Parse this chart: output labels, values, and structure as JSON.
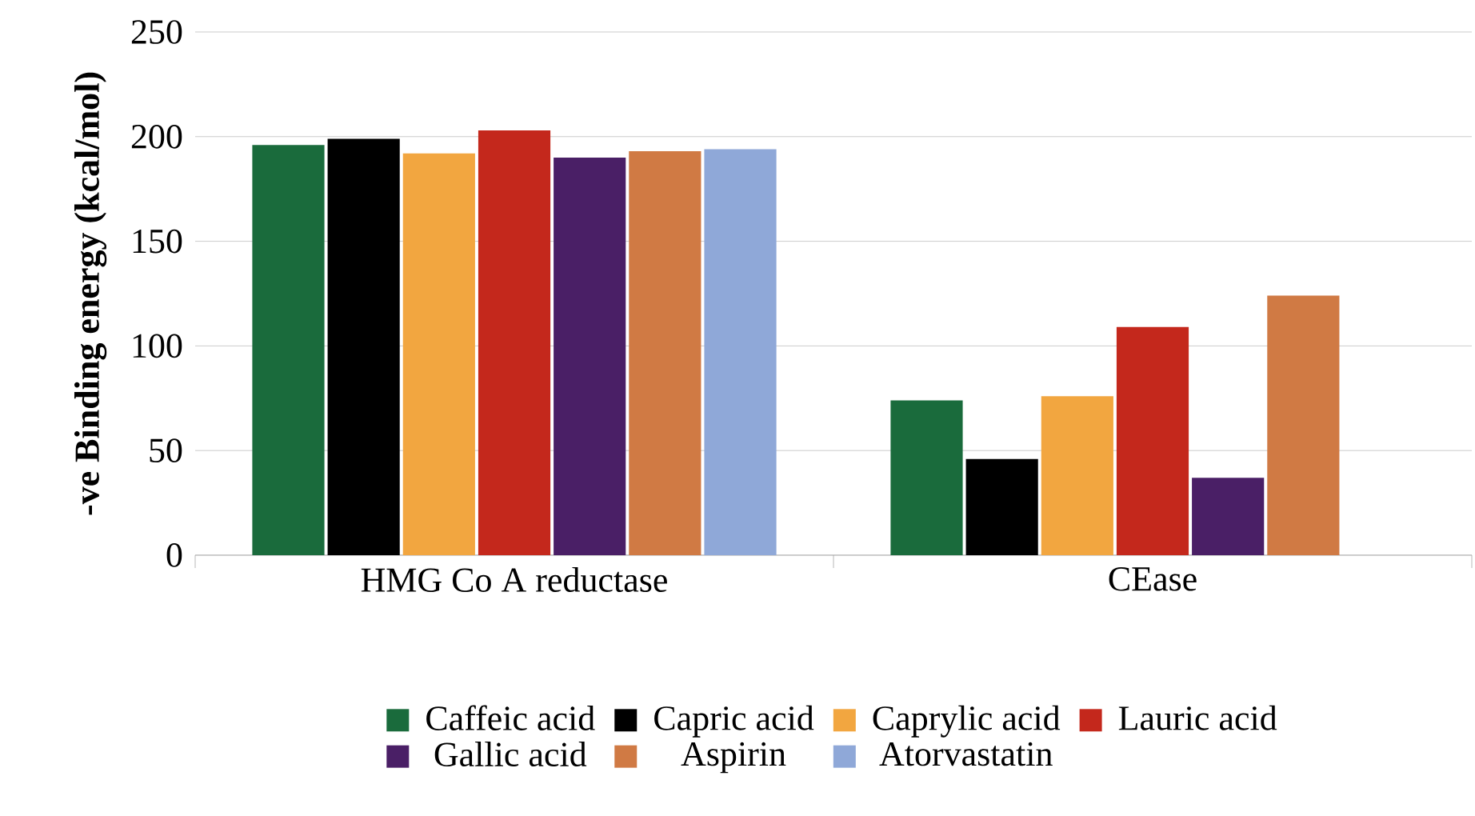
{
  "chart_data": {
    "type": "bar",
    "ylabel": "-ve Binding energy (kcal/mol)",
    "categories": [
      "HMG Co A reductase",
      "CEase"
    ],
    "series": [
      {
        "name": "Caffeic acid",
        "color": "#1a6b3c",
        "values": [
          196,
          74
        ]
      },
      {
        "name": "Capric acid",
        "color": "#000000",
        "values": [
          199,
          46
        ]
      },
      {
        "name": "Caprylic acid",
        "color": "#f2a640",
        "values": [
          192,
          76
        ]
      },
      {
        "name": "Lauric acid",
        "color": "#c4281c",
        "values": [
          203,
          109
        ]
      },
      {
        "name": "Gallic acid",
        "color": "#4a1f66",
        "values": [
          190,
          37
        ]
      },
      {
        "name": "Aspirin",
        "color": "#d07a44",
        "values": [
          193,
          124
        ]
      },
      {
        "name": "Atorvastatin",
        "color": "#8fa8d8",
        "values": [
          194,
          null
        ]
      }
    ],
    "ylim": [
      0,
      250
    ],
    "yticks": [
      0,
      50,
      100,
      150,
      200,
      250
    ],
    "grid": "y",
    "legend": "bottom"
  }
}
